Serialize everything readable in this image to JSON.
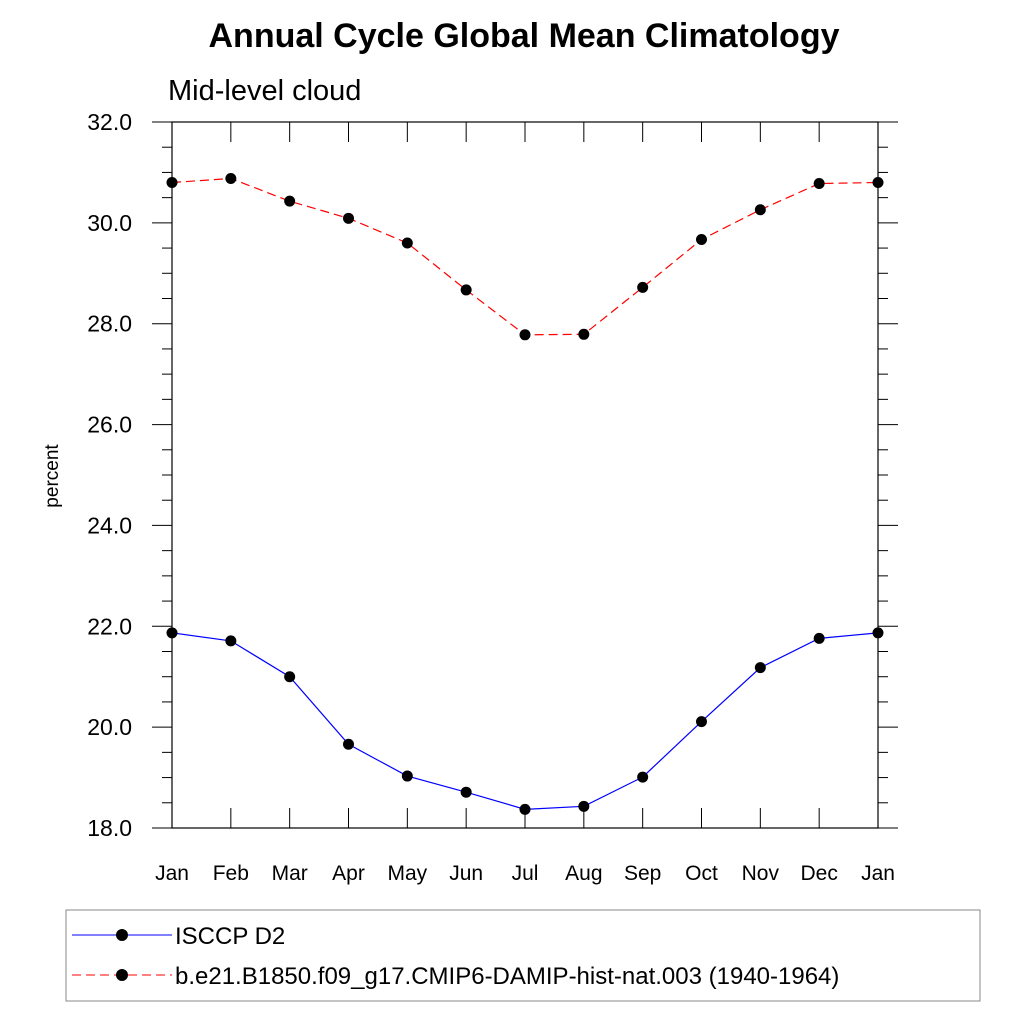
{
  "chart_data": {
    "type": "line",
    "title": "Annual Cycle Global Mean Climatology",
    "subtitle": "Mid-level cloud",
    "ylabel": "percent",
    "xlabel": "",
    "categories": [
      "Jan",
      "Feb",
      "Mar",
      "Apr",
      "May",
      "Jun",
      "Jul",
      "Aug",
      "Sep",
      "Oct",
      "Nov",
      "Dec",
      "Jan"
    ],
    "ylim": [
      18.0,
      32.0
    ],
    "yticks": [
      "18.0",
      "20.0",
      "22.0",
      "24.0",
      "26.0",
      "28.0",
      "30.0",
      "32.0"
    ],
    "ytick_values": [
      18,
      20,
      22,
      24,
      26,
      28,
      30,
      32
    ],
    "grid": false,
    "legend_position": "bottom",
    "series": [
      {
        "name": "ISCCP D2",
        "color": "#0000ff",
        "dashed": false,
        "values": [
          21.87,
          21.71,
          21.0,
          19.66,
          19.03,
          18.71,
          18.37,
          18.43,
          19.01,
          20.11,
          21.18,
          21.76,
          21.87
        ]
      },
      {
        "name": "b.e21.B1850.f09_g17.CMIP6-DAMIP-hist-nat.003 (1940-1964)",
        "color": "#ff0000",
        "dashed": true,
        "values": [
          30.8,
          30.88,
          30.43,
          30.09,
          29.6,
          28.67,
          27.78,
          27.79,
          28.72,
          29.67,
          30.26,
          30.78,
          30.8
        ]
      }
    ]
  }
}
